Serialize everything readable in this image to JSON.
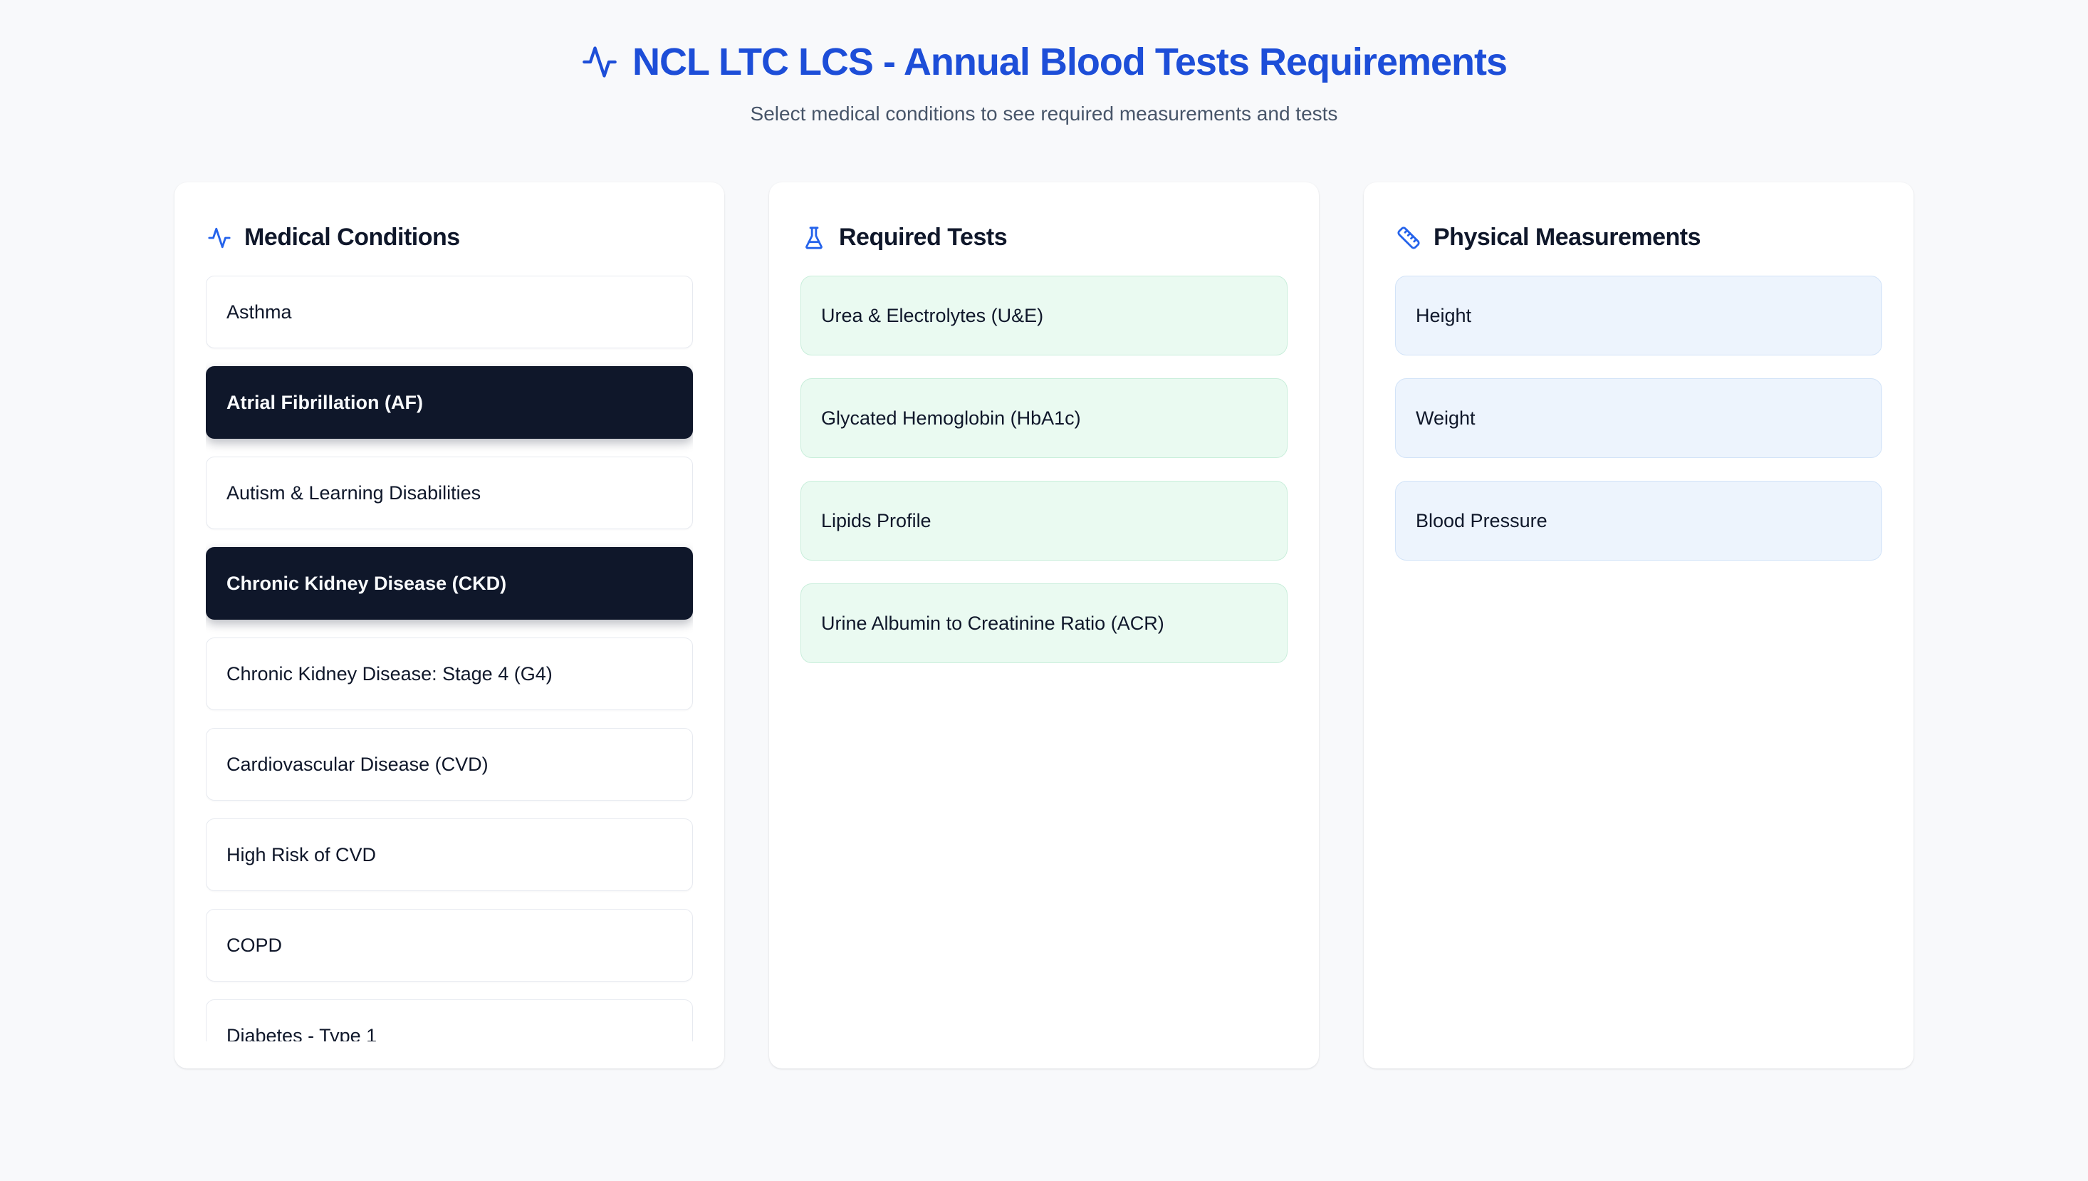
{
  "page": {
    "title": "NCL LTC LCS - Annual Blood Tests Requirements",
    "subtitle": "Select medical conditions to see required measurements and tests"
  },
  "colors": {
    "accent_blue": "#1d4ed8",
    "icon_blue": "#2563eb",
    "selected_bg": "#0f172a",
    "test_bg": "#eafaf1",
    "test_border": "#c9eedb",
    "measure_bg": "#edf4fd",
    "measure_border": "#d2e3f8"
  },
  "panels": {
    "conditions": {
      "title": "Medical Conditions",
      "icon": "activity-icon",
      "items": [
        {
          "label": "Asthma",
          "selected": false
        },
        {
          "label": "Atrial Fibrillation (AF)",
          "selected": true
        },
        {
          "label": "Autism & Learning Disabilities",
          "selected": false
        },
        {
          "label": "Chronic Kidney Disease (CKD)",
          "selected": true
        },
        {
          "label": "Chronic Kidney Disease: Stage 4 (G4)",
          "selected": false
        },
        {
          "label": "Cardiovascular Disease (CVD)",
          "selected": false
        },
        {
          "label": "High Risk of CVD",
          "selected": false
        },
        {
          "label": "COPD",
          "selected": false
        },
        {
          "label": "Diabetes - Type 1",
          "selected": false
        }
      ]
    },
    "tests": {
      "title": "Required Tests",
      "icon": "flask-icon",
      "items": [
        "Urea & Electrolytes (U&E)",
        "Glycated Hemoglobin (HbA1c)",
        "Lipids Profile",
        "Urine Albumin to Creatinine Ratio (ACR)"
      ]
    },
    "measurements": {
      "title": "Physical Measurements",
      "icon": "ruler-icon",
      "items": [
        "Height",
        "Weight",
        "Blood Pressure"
      ]
    }
  }
}
